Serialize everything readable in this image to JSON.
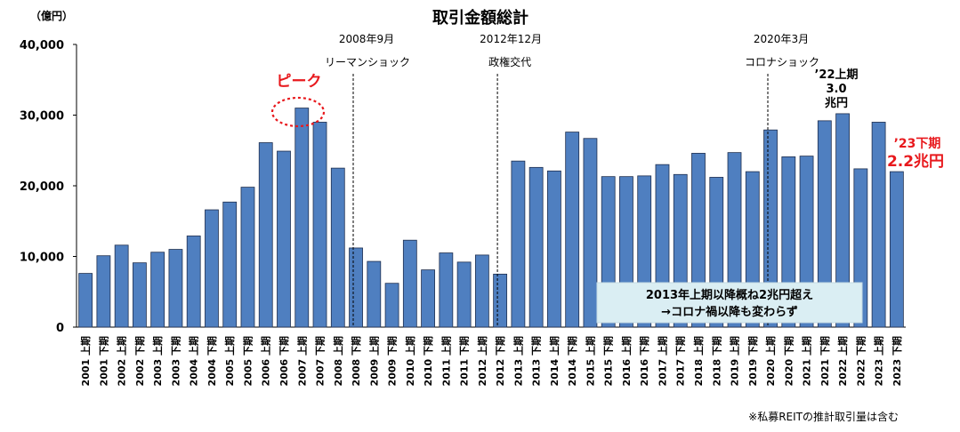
{
  "chart_data": {
    "type": "bar",
    "title": "取引金額総計",
    "unit_label": "（億円）",
    "ylim": [
      0,
      40000
    ],
    "yticks": [
      "0",
      "10,000",
      "20,000",
      "30,000",
      "40,000"
    ],
    "grid": false,
    "categories": [
      "2001 上期",
      "2001 下期",
      "2002 上期",
      "2002 下期",
      "2003 上期",
      "2003 下期",
      "2004 上期",
      "2004 下期",
      "2005 上期",
      "2005 下期",
      "2006 上期",
      "2006 下期",
      "2007 上期",
      "2007 下期",
      "2008 上期",
      "2008 下期",
      "2009 上期",
      "2009 下期",
      "2010 上期",
      "2010 下期",
      "2011 上期",
      "2011 下期",
      "2012 上期",
      "2012 下期",
      "2013 上期",
      "2013 下期",
      "2014 上期",
      "2014 下期",
      "2015 上期",
      "2015 下期",
      "2016 上期",
      "2016 下期",
      "2017 上期",
      "2017 下期",
      "2018 上期",
      "2018 下期",
      "2019 上期",
      "2019 下期",
      "2020 上期",
      "2020 下期",
      "2021 上期",
      "2021 下期",
      "2022 上期",
      "2022 下期",
      "2023 上期",
      "2023 下期"
    ],
    "values": [
      7600,
      10100,
      11600,
      9100,
      10600,
      11000,
      12900,
      16600,
      17700,
      19800,
      26100,
      24900,
      31000,
      29000,
      22500,
      11200,
      9300,
      6200,
      12300,
      8100,
      10500,
      9200,
      10200,
      7500,
      23500,
      22600,
      22100,
      27600,
      26700,
      21300,
      21300,
      21400,
      23000,
      21600,
      24600,
      21200,
      24700,
      22000,
      27900,
      24100,
      24200,
      29200,
      30200,
      22400,
      29000,
      22000
    ],
    "events": [
      {
        "date": "2008年9月",
        "label": "リーマンショック"
      },
      {
        "date": "2012年12月",
        "label": "政権交代"
      },
      {
        "date": "2020年3月",
        "label": "コロナショック"
      }
    ],
    "peak_label": "ピーク",
    "highlight_22": [
      "’22上期",
      "3.0",
      "兆円"
    ],
    "highlight_23": [
      "’23下期",
      "2.2兆円"
    ],
    "box_lines": [
      "2013年上期以降概ね2兆円超え",
      "→コロナ禍以降も変わらず"
    ],
    "footnote": "※私募REITの推計取引量は含む"
  }
}
